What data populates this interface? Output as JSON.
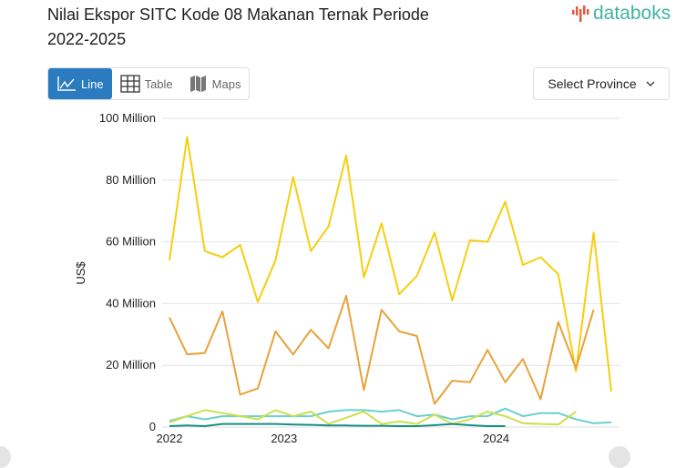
{
  "header": {
    "title": "Nilai Ekspor SITC Kode 08 Makanan Ternak Periode 2022-2025",
    "logo": "databoks"
  },
  "view_tabs": [
    {
      "label": "Line",
      "icon": "line-chart-icon",
      "active": true
    },
    {
      "label": "Table",
      "icon": "table-grid-icon",
      "active": false
    },
    {
      "label": "Maps",
      "icon": "map-icon",
      "active": false
    }
  ],
  "province_select": {
    "label": "Select Province",
    "icon": "chevron-down-icon"
  },
  "colors": {
    "accent": "#2a7bbf",
    "logo": "#3fb3a8"
  },
  "chart_data": {
    "type": "line",
    "title": "Nilai Ekspor SITC Kode 08 Makanan Ternak Periode 2022-2025",
    "ylabel": "US$",
    "ylim": [
      0,
      100
    ],
    "y_unit": "Million",
    "y_ticks": [
      "0",
      "20 Million",
      "40 Million",
      "60 Million",
      "80 Million",
      "100 Million"
    ],
    "x_ticks": [
      {
        "label": "2022",
        "x": "2022-06"
      },
      {
        "label": "2023",
        "x": "2023-01"
      },
      {
        "label": "2024",
        "x": "2024-01"
      }
    ],
    "grid": true,
    "x": [
      "2022-06",
      "2022-07",
      "2022-08",
      "2022-09",
      "2022-10",
      "2022-11",
      "2022-12",
      "2023-01",
      "2023-02",
      "2023-03",
      "2023-04",
      "2023-05",
      "2023-06",
      "2023-07",
      "2023-08",
      "2023-09",
      "2023-10",
      "2023-11",
      "2023-12",
      "2024-01",
      "2024-02",
      "2024-03",
      "2024-04",
      "2024-05",
      "2024-06",
      "2024-07"
    ],
    "series": [
      {
        "color": "#f5cf0f",
        "values": [
          54,
          94,
          57,
          55,
          59,
          40.5,
          54,
          81,
          57,
          65,
          88,
          48.5,
          66,
          43,
          49,
          63,
          41,
          60.5,
          60,
          73,
          52.5,
          55,
          49.5,
          18,
          63,
          11.5
        ]
      },
      {
        "color": "#e8a23a",
        "values": [
          35.5,
          23.5,
          24,
          37.5,
          10.5,
          12.5,
          31,
          23.5,
          31.5,
          25.5,
          42.5,
          12,
          38,
          31,
          29.5,
          7.5,
          15,
          14.5,
          25,
          14.5,
          22,
          9,
          34,
          19,
          38,
          null
        ]
      },
      {
        "color": "#6ccfcf",
        "values": [
          2,
          3.5,
          2.5,
          3.5,
          3.5,
          3.5,
          3.5,
          3.5,
          3.5,
          5,
          5.5,
          5.5,
          5,
          5.5,
          3.5,
          4,
          2.5,
          3.5,
          3.5,
          6,
          3.5,
          4.5,
          4.5,
          2.5,
          1.2,
          1.5
        ]
      },
      {
        "color": "#cde04a",
        "values": [
          1.5,
          3.5,
          5.5,
          4.5,
          3.5,
          2.5,
          5.5,
          3.5,
          5,
          1,
          3,
          5,
          1,
          1.8,
          1,
          4,
          1,
          2.5,
          5,
          3.5,
          1.2,
          1,
          0.8,
          5,
          null,
          null
        ]
      },
      {
        "color": "#168f86",
        "values": [
          0.3,
          0.5,
          0.3,
          1,
          1,
          1,
          1,
          0.8,
          0.7,
          0.5,
          0.5,
          0.4,
          0.4,
          0.3,
          0.3,
          0.6,
          1,
          0.6,
          0.3,
          0.3,
          null,
          null,
          null,
          null,
          null,
          null
        ]
      }
    ]
  }
}
